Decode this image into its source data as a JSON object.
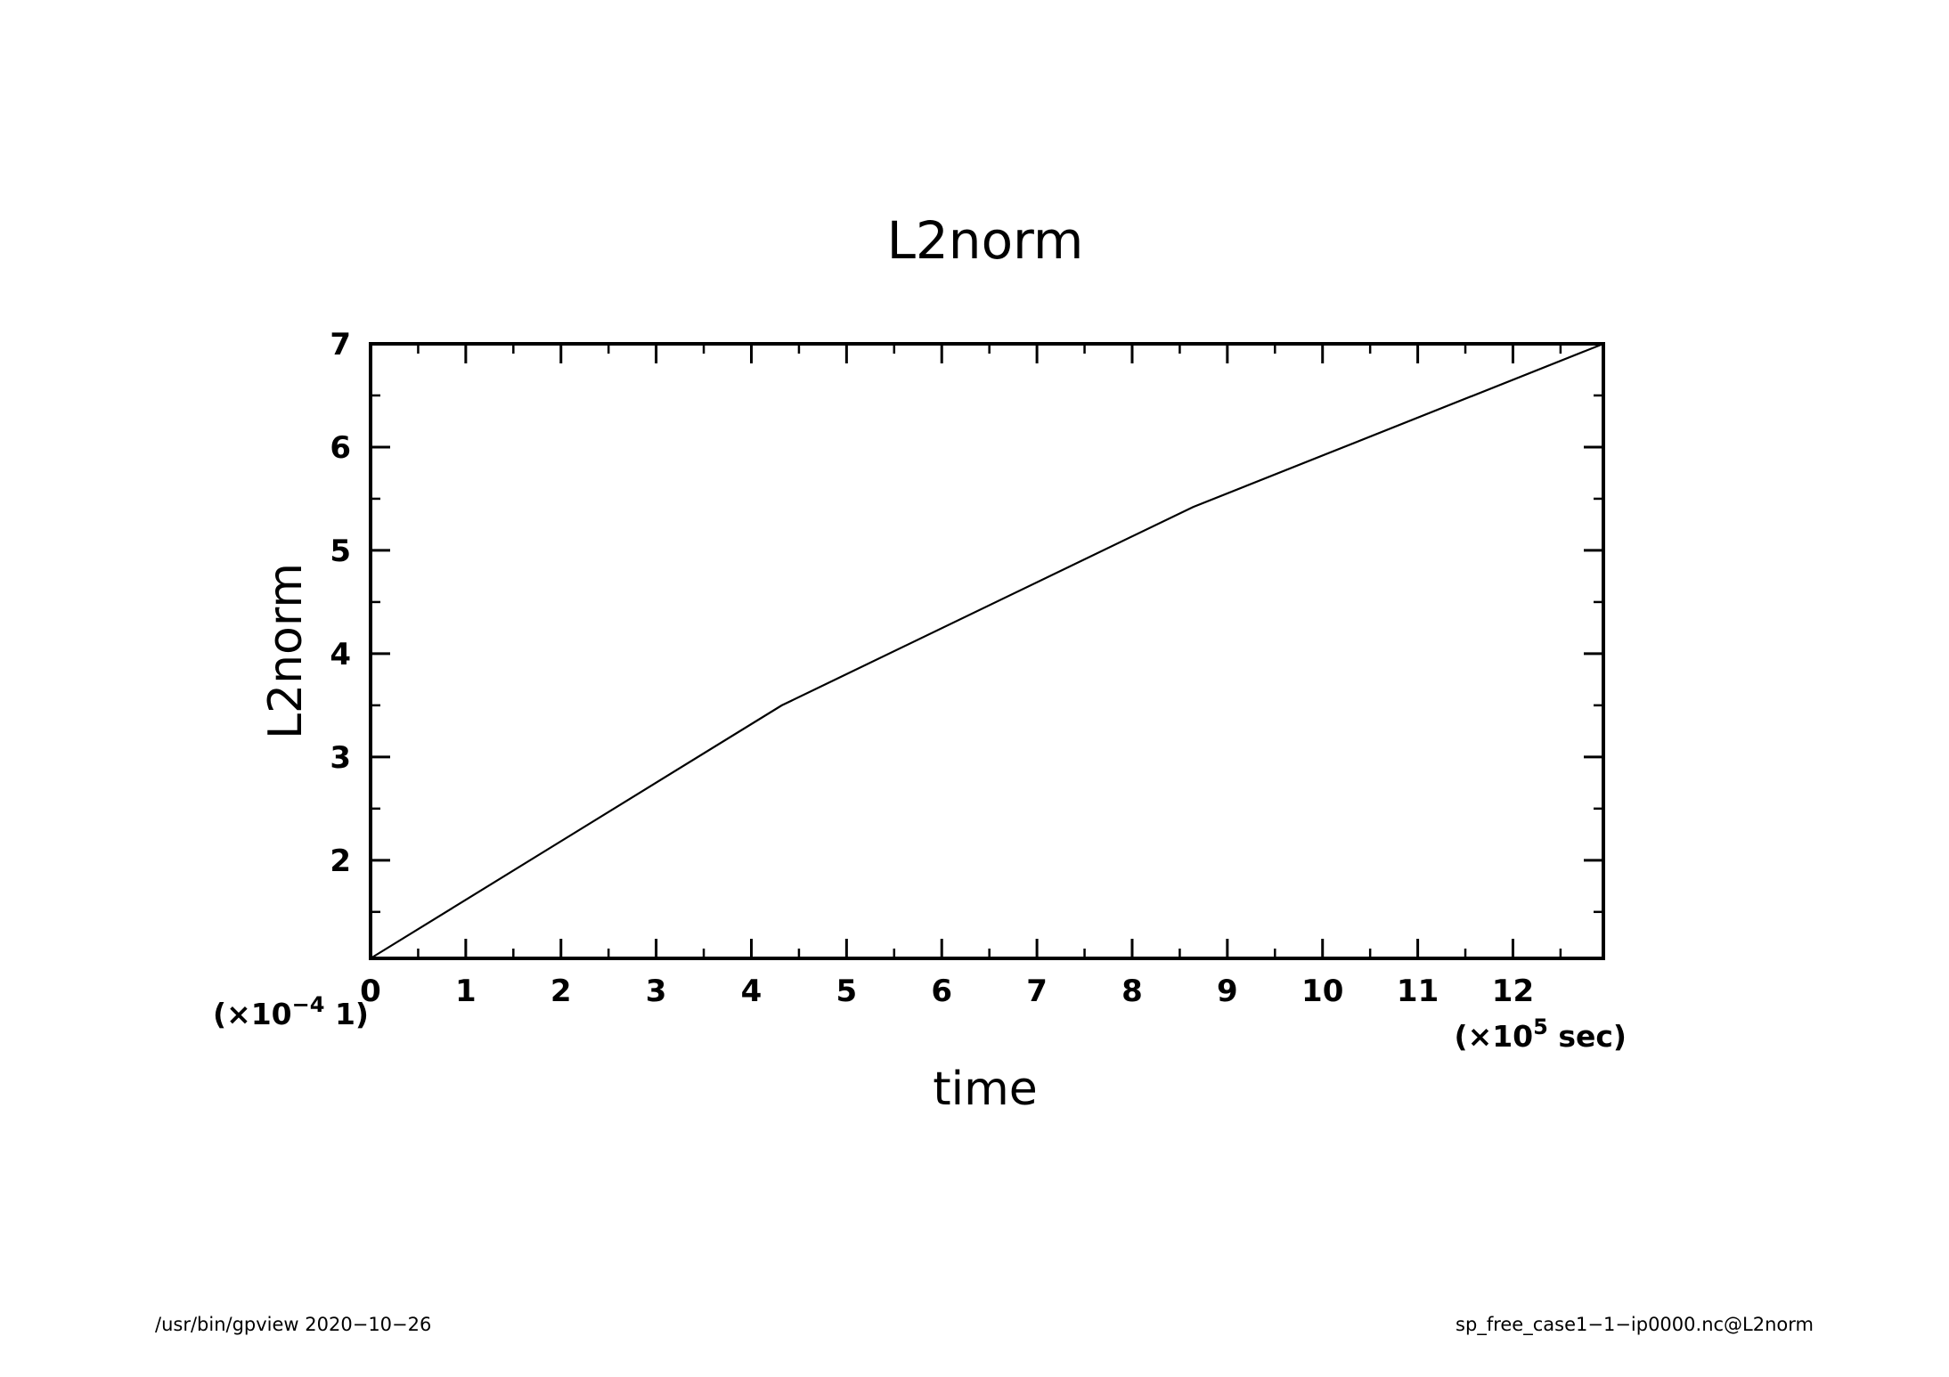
{
  "chart_data": {
    "type": "line",
    "title": "L2norm",
    "xlabel": "time",
    "ylabel": "L2norm",
    "x_scale_prefix": "(×10",
    "x_scale_exp": "5",
    "x_scale_suffix": " sec)",
    "y_scale_prefix": "(×10",
    "y_scale_exp": "−4",
    "y_scale_suffix": " 1)",
    "xlim": [
      0,
      12.95
    ],
    "ylim": [
      1.05,
      7
    ],
    "x_ticks": [
      0,
      1,
      2,
      3,
      4,
      5,
      6,
      7,
      8,
      9,
      10,
      11,
      12
    ],
    "x_tick_labels": [
      "0",
      "1",
      "2",
      "3",
      "4",
      "5",
      "6",
      "7",
      "8",
      "9",
      "10",
      "11",
      "12"
    ],
    "y_ticks": [
      2,
      3,
      4,
      5,
      6,
      7
    ],
    "y_tick_labels": [
      "2",
      "3",
      "4",
      "5",
      "6",
      "7"
    ],
    "grid": false,
    "series": [
      {
        "x": [
          0,
          4.32,
          8.64,
          12.95
        ],
        "y": [
          1.05,
          3.5,
          5.42,
          7.0
        ]
      }
    ]
  },
  "footer": {
    "left": "/usr/bin/gpview   2020−10−26",
    "right": "sp_free_case1−1−ip0000.nc@L2norm"
  }
}
